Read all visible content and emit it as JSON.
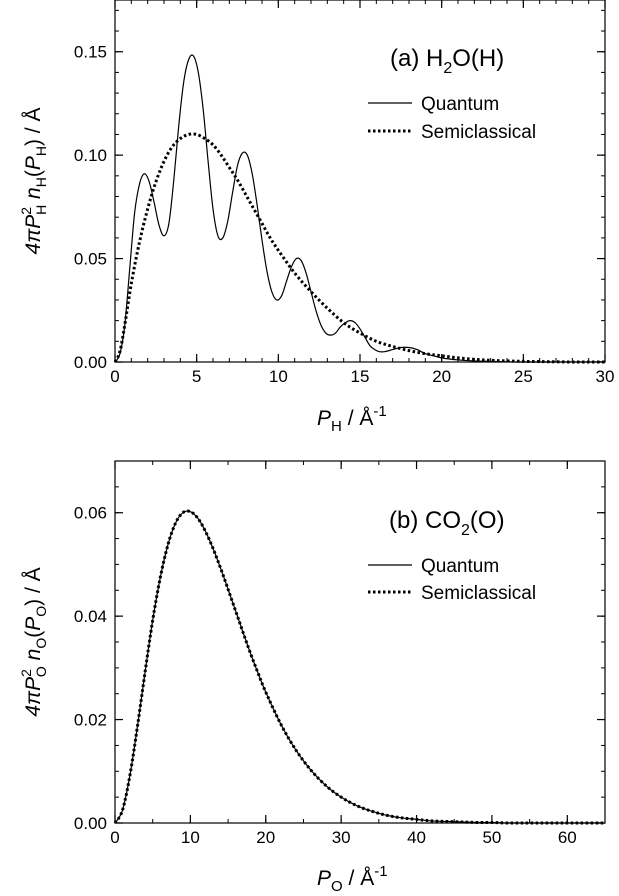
{
  "chart_data": [
    {
      "type": "line",
      "title": "(a) H2O(H)",
      "title_parts": {
        "prefix": "(a) H",
        "sub": "2",
        "suffix": "O(H)"
      },
      "xlabel": "P_H / Å^-1",
      "xlabel_parts": {
        "main": "P",
        "sub": "H",
        "unit": " / Å",
        "sup": "-1"
      },
      "ylabel": "4πP_H^2 n_H(P_H) / Å",
      "ylabel_parts": {
        "a": "4π",
        "b": "P",
        "c": "2",
        "d": "H",
        "e": " n",
        "f": "H",
        "g": "(",
        "h": "P",
        "i": "H",
        "j": ") / Å"
      },
      "xlim": [
        0,
        30
      ],
      "ylim": [
        0,
        0.175
      ],
      "xticks": [
        0,
        5,
        10,
        15,
        20,
        25,
        30
      ],
      "xtick_labels": [
        "0",
        "5",
        "10",
        "15",
        "20",
        "25",
        "30"
      ],
      "yticks": [
        0.0,
        0.05,
        0.1,
        0.15
      ],
      "ytick_labels": [
        "0.00",
        "0.05",
        "0.10",
        "0.15"
      ],
      "grid": false,
      "legend_position": "top-right",
      "series": [
        {
          "name": "Quantum",
          "style": "solid",
          "x": [
            0,
            0.3,
            0.6,
            0.9,
            1.2,
            1.5,
            1.8,
            2.1,
            2.4,
            2.7,
            3.0,
            3.3,
            3.6,
            3.9,
            4.2,
            4.5,
            4.8,
            5.1,
            5.4,
            5.7,
            6.0,
            6.3,
            6.6,
            6.9,
            7.2,
            7.5,
            7.8,
            8.1,
            8.4,
            8.7,
            9.0,
            9.3,
            9.6,
            9.9,
            10.2,
            10.5,
            10.8,
            11.1,
            11.4,
            11.7,
            12.0,
            12.3,
            12.6,
            12.9,
            13.2,
            13.5,
            13.8,
            14.1,
            14.4,
            14.7,
            15.0,
            15.3,
            15.6,
            15.9,
            16.2,
            16.5,
            17.0,
            17.5,
            18.0,
            18.5,
            19.0,
            19.5,
            20.0,
            21.0,
            22.0,
            23.0,
            24.0,
            25.0,
            26.0,
            27.0,
            28.0,
            29.0,
            30.0
          ],
          "y": [
            0.0,
            0.004,
            0.018,
            0.045,
            0.072,
            0.086,
            0.091,
            0.087,
            0.077,
            0.066,
            0.061,
            0.067,
            0.088,
            0.114,
            0.135,
            0.146,
            0.148,
            0.14,
            0.122,
            0.097,
            0.074,
            0.061,
            0.06,
            0.068,
            0.082,
            0.095,
            0.101,
            0.1,
            0.091,
            0.076,
            0.059,
            0.044,
            0.034,
            0.03,
            0.032,
            0.039,
            0.046,
            0.05,
            0.049,
            0.043,
            0.034,
            0.025,
            0.018,
            0.014,
            0.013,
            0.014,
            0.017,
            0.019,
            0.02,
            0.019,
            0.016,
            0.012,
            0.008,
            0.006,
            0.005,
            0.005,
            0.006,
            0.007,
            0.007,
            0.006,
            0.004,
            0.003,
            0.002,
            0.001,
            0.0005,
            0.0003,
            0.0001,
            0.0,
            0.0,
            0.0,
            0.0,
            0.0,
            0.0
          ]
        },
        {
          "name": "Semiclassical",
          "style": "dotted",
          "x": [
            0,
            0.3,
            0.6,
            1.0,
            1.5,
            2.0,
            2.5,
            3.0,
            3.5,
            4.0,
            4.5,
            5.0,
            5.5,
            6.0,
            6.5,
            7.0,
            7.5,
            8.0,
            8.5,
            9.0,
            9.5,
            10.0,
            11.0,
            12.0,
            13.0,
            14.0,
            15.0,
            16.0,
            17.0,
            18.0,
            19.0,
            20.0,
            21.0,
            22.0,
            23.0,
            24.0,
            25.0,
            26.0,
            27.0,
            28.0,
            29.0,
            30.0
          ],
          "y": [
            0.0,
            0.005,
            0.018,
            0.038,
            0.058,
            0.074,
            0.087,
            0.097,
            0.104,
            0.108,
            0.11,
            0.11,
            0.108,
            0.105,
            0.1,
            0.094,
            0.088,
            0.081,
            0.074,
            0.067,
            0.06,
            0.054,
            0.043,
            0.034,
            0.026,
            0.019,
            0.014,
            0.01,
            0.0075,
            0.0055,
            0.004,
            0.003,
            0.002,
            0.0013,
            0.0008,
            0.0005,
            0.0003,
            0.0002,
            0.0001,
            0.0,
            0.0,
            0.0
          ]
        }
      ]
    },
    {
      "type": "line",
      "title": "(b) CO2(O)",
      "title_parts": {
        "prefix": "(b) CO",
        "sub": "2",
        "suffix": "(O)"
      },
      "xlabel": "P_O / Å^-1",
      "xlabel_parts": {
        "main": "P",
        "sub": "O",
        "unit": " / Å",
        "sup": "-1"
      },
      "ylabel": "4πP_O^2 n_O(P_O) / Å",
      "ylabel_parts": {
        "a": "4π",
        "b": "P",
        "c": "2",
        "d": "O",
        "e": " n",
        "f": "O",
        "g": "(",
        "h": "P",
        "i": "O",
        "j": ") / Å"
      },
      "xlim": [
        0,
        65
      ],
      "ylim": [
        0,
        0.07
      ],
      "xticks": [
        0,
        10,
        20,
        30,
        40,
        50,
        60
      ],
      "xtick_labels": [
        "0",
        "10",
        "20",
        "30",
        "40",
        "50",
        "60"
      ],
      "yticks": [
        0.0,
        0.02,
        0.04,
        0.06
      ],
      "ytick_labels": [
        "0.00",
        "0.02",
        "0.04",
        "0.06"
      ],
      "grid": false,
      "legend_position": "right",
      "series": [
        {
          "name": "Quantum",
          "style": "solid",
          "x": [
            0,
            1,
            2,
            3,
            4,
            5,
            6,
            7,
            8,
            9,
            10,
            11,
            12,
            13,
            14,
            15,
            16,
            17,
            18,
            19,
            20,
            22,
            24,
            26,
            28,
            30,
            32,
            34,
            36,
            38,
            40,
            42,
            44,
            46,
            48,
            50,
            52,
            54,
            56,
            58,
            60,
            62,
            65
          ],
          "y": [
            0.0,
            0.0025,
            0.0094,
            0.0189,
            0.0293,
            0.0392,
            0.0474,
            0.0537,
            0.0579,
            0.06,
            0.0602,
            0.0589,
            0.0564,
            0.0531,
            0.0493,
            0.0452,
            0.041,
            0.0368,
            0.0327,
            0.0289,
            0.0253,
            0.0191,
            0.0141,
            0.0102,
            0.0072,
            0.005,
            0.0034,
            0.0023,
            0.0015,
            0.001,
            0.0007,
            0.0004,
            0.0003,
            0.0002,
            0.0001,
            0.0001,
            0.0,
            0.0,
            0.0,
            0.0,
            0.0,
            0.0,
            0.0
          ]
        },
        {
          "name": "Semiclassical",
          "style": "dotted",
          "x": [
            0,
            1,
            2,
            3,
            4,
            5,
            6,
            7,
            8,
            9,
            10,
            11,
            12,
            13,
            14,
            15,
            16,
            17,
            18,
            19,
            20,
            22,
            24,
            26,
            28,
            30,
            32,
            34,
            36,
            38,
            40,
            42,
            44,
            46,
            48,
            50,
            52,
            54,
            56,
            58,
            60,
            62,
            65
          ],
          "y": [
            0.0,
            0.0025,
            0.0094,
            0.0189,
            0.0293,
            0.0392,
            0.0474,
            0.0537,
            0.0579,
            0.06,
            0.0602,
            0.0589,
            0.0564,
            0.0531,
            0.0493,
            0.0452,
            0.041,
            0.0368,
            0.0327,
            0.0289,
            0.0253,
            0.0191,
            0.0141,
            0.0102,
            0.0072,
            0.005,
            0.0034,
            0.0023,
            0.0015,
            0.001,
            0.0007,
            0.0004,
            0.0003,
            0.0002,
            0.0001,
            0.0001,
            0.0,
            0.0,
            0.0,
            0.0,
            0.0,
            0.0,
            0.0
          ]
        }
      ]
    }
  ]
}
